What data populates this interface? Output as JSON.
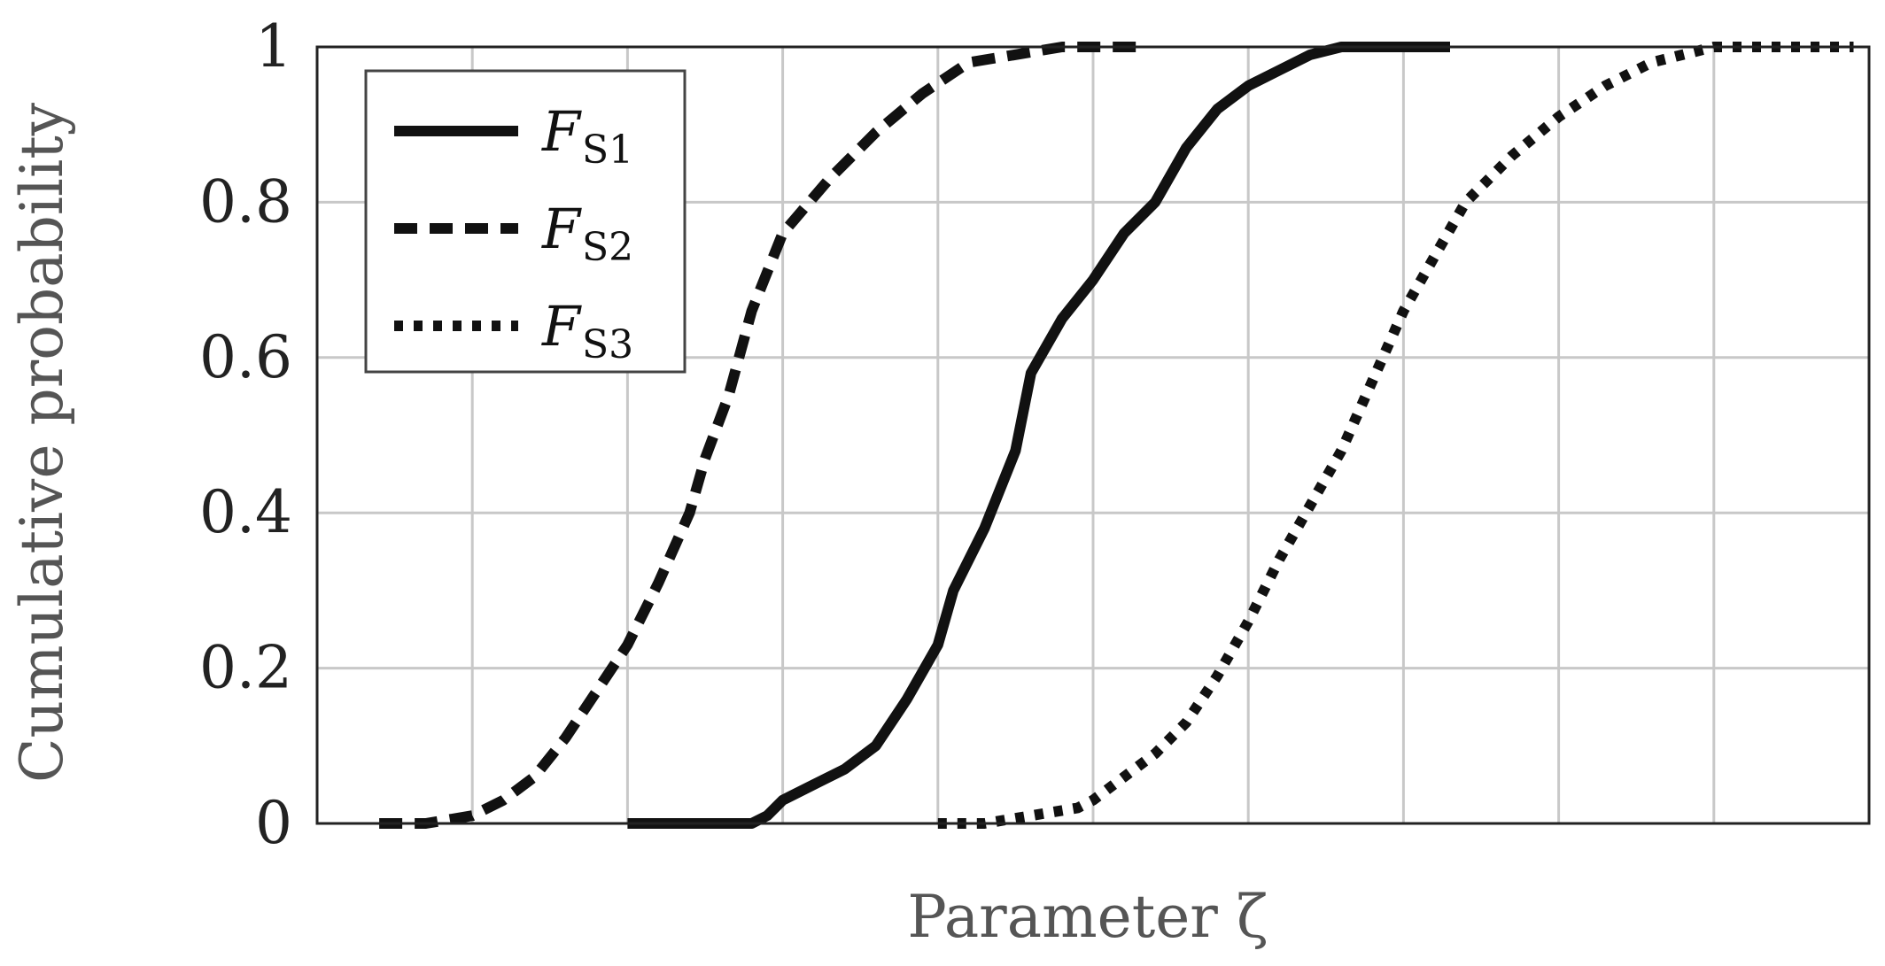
{
  "chart_data": {
    "type": "line",
    "title": "",
    "xlabel": "Parameter ζ",
    "ylabel": "Cumulative probability",
    "xlim": [
      0,
      10
    ],
    "ylim": [
      0,
      1
    ],
    "x_ticks": [
      1,
      2,
      3,
      4,
      5,
      6,
      7,
      8,
      9
    ],
    "x_tick_labels_shown": false,
    "y_ticks": [
      0,
      0.2,
      0.4,
      0.6,
      0.8,
      1
    ],
    "y_tick_labels": [
      "0",
      "0.2",
      "0.4",
      "0.6",
      "0.8",
      "1"
    ],
    "grid": true,
    "legend_position": "top-left",
    "series": [
      {
        "name": "F",
        "subscript": "S1",
        "style": "solid",
        "color": "#111111",
        "x": [
          2.0,
          2.5,
          2.8,
          2.9,
          3.0,
          3.2,
          3.4,
          3.6,
          3.8,
          4.0,
          4.1,
          4.3,
          4.5,
          4.6,
          4.8,
          5.0,
          5.2,
          5.4,
          5.6,
          5.8,
          6.0,
          6.2,
          6.4,
          6.6,
          6.8,
          7.0,
          7.1,
          7.3
        ],
        "y": [
          0.0,
          0.0,
          0.0,
          0.01,
          0.03,
          0.05,
          0.07,
          0.1,
          0.16,
          0.23,
          0.3,
          0.38,
          0.48,
          0.58,
          0.65,
          0.7,
          0.76,
          0.8,
          0.87,
          0.92,
          0.95,
          0.97,
          0.99,
          1.0,
          1.0,
          1.0,
          1.0,
          1.0
        ]
      },
      {
        "name": "F",
        "subscript": "S2",
        "style": "dashed",
        "color": "#111111",
        "x": [
          0.4,
          0.7,
          1.0,
          1.2,
          1.4,
          1.6,
          1.8,
          2.0,
          2.2,
          2.4,
          2.5,
          2.65,
          2.8,
          3.0,
          3.3,
          3.6,
          3.9,
          4.2,
          4.5,
          4.8,
          5.0,
          5.3
        ],
        "y": [
          0.0,
          0.0,
          0.01,
          0.03,
          0.06,
          0.11,
          0.17,
          0.23,
          0.31,
          0.4,
          0.47,
          0.55,
          0.66,
          0.76,
          0.83,
          0.89,
          0.94,
          0.98,
          0.99,
          1.0,
          1.0,
          1.0
        ]
      },
      {
        "name": "F",
        "subscript": "S3",
        "style": "dotted",
        "color": "#111111",
        "x": [
          4.0,
          4.3,
          4.6,
          4.9,
          5.0,
          5.2,
          5.4,
          5.6,
          5.8,
          6.0,
          6.2,
          6.4,
          6.6,
          6.8,
          7.0,
          7.2,
          7.4,
          7.7,
          8.0,
          8.3,
          8.6,
          9.0,
          9.5,
          9.9
        ],
        "y": [
          0.0,
          0.0,
          0.01,
          0.02,
          0.03,
          0.06,
          0.09,
          0.13,
          0.19,
          0.26,
          0.34,
          0.41,
          0.48,
          0.57,
          0.66,
          0.73,
          0.8,
          0.86,
          0.91,
          0.95,
          0.98,
          1.0,
          1.0,
          1.0
        ]
      }
    ]
  }
}
